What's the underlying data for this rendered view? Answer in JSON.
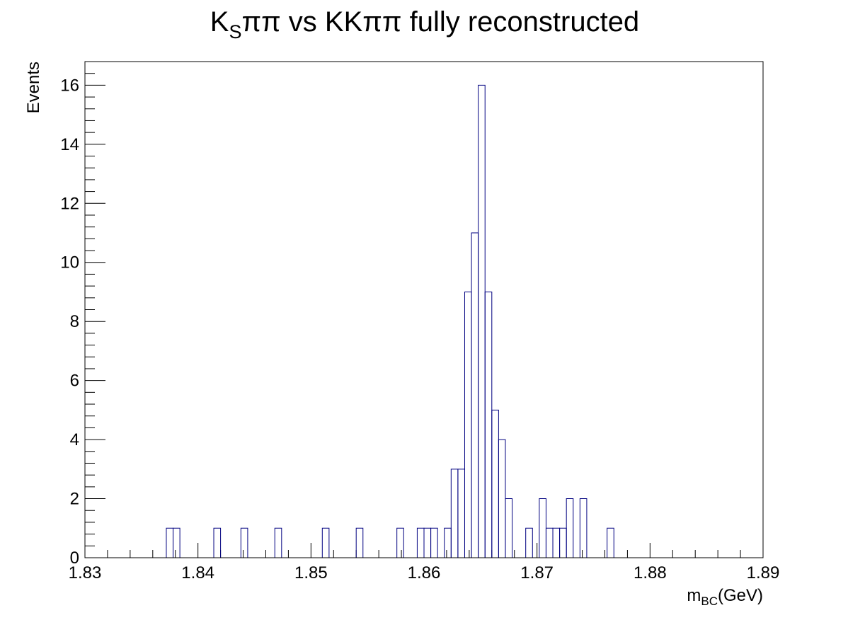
{
  "chart_data": {
    "type": "bar",
    "histogram": true,
    "title": {
      "main": "K",
      "sub": "S",
      "rest": "ππ vs KKππ fully reconstructed"
    },
    "xlabel": {
      "main": "m",
      "sub": "BC",
      "rest": "(GeV)"
    },
    "ylabel": "Events",
    "xlim": [
      1.83,
      1.89
    ],
    "ylim": [
      0,
      16.8
    ],
    "bin_width": 0.0006,
    "x_ticks": [
      1.83,
      1.84,
      1.85,
      1.86,
      1.87,
      1.88,
      1.89
    ],
    "x_tick_labels": [
      "1.83",
      "1.84",
      "1.85",
      "1.86",
      "1.87",
      "1.88",
      "1.89"
    ],
    "y_ticks": [
      0,
      2,
      4,
      6,
      8,
      10,
      12,
      14,
      16
    ],
    "y_tick_labels": [
      "0",
      "2",
      "4",
      "6",
      "8",
      "10",
      "12",
      "14",
      "16"
    ],
    "grid": false,
    "line_color": "#000080",
    "bins": [
      {
        "x": 1.8372,
        "count": 1
      },
      {
        "x": 1.8378,
        "count": 1
      },
      {
        "x": 1.8414,
        "count": 1
      },
      {
        "x": 1.8438,
        "count": 1
      },
      {
        "x": 1.8468,
        "count": 1
      },
      {
        "x": 1.851,
        "count": 1
      },
      {
        "x": 1.854,
        "count": 1
      },
      {
        "x": 1.8576,
        "count": 1
      },
      {
        "x": 1.8594,
        "count": 1
      },
      {
        "x": 1.86,
        "count": 1
      },
      {
        "x": 1.8606,
        "count": 1
      },
      {
        "x": 1.8618,
        "count": 1
      },
      {
        "x": 1.8624,
        "count": 3
      },
      {
        "x": 1.863,
        "count": 3
      },
      {
        "x": 1.8636,
        "count": 9
      },
      {
        "x": 1.8642,
        "count": 11
      },
      {
        "x": 1.8648,
        "count": 16
      },
      {
        "x": 1.8654,
        "count": 9
      },
      {
        "x": 1.866,
        "count": 5
      },
      {
        "x": 1.8666,
        "count": 4
      },
      {
        "x": 1.8672,
        "count": 2
      },
      {
        "x": 1.869,
        "count": 1
      },
      {
        "x": 1.8702,
        "count": 2
      },
      {
        "x": 1.8708,
        "count": 1
      },
      {
        "x": 1.8714,
        "count": 1
      },
      {
        "x": 1.872,
        "count": 1
      },
      {
        "x": 1.8726,
        "count": 2
      },
      {
        "x": 1.8738,
        "count": 2
      },
      {
        "x": 1.8762,
        "count": 1
      }
    ]
  }
}
